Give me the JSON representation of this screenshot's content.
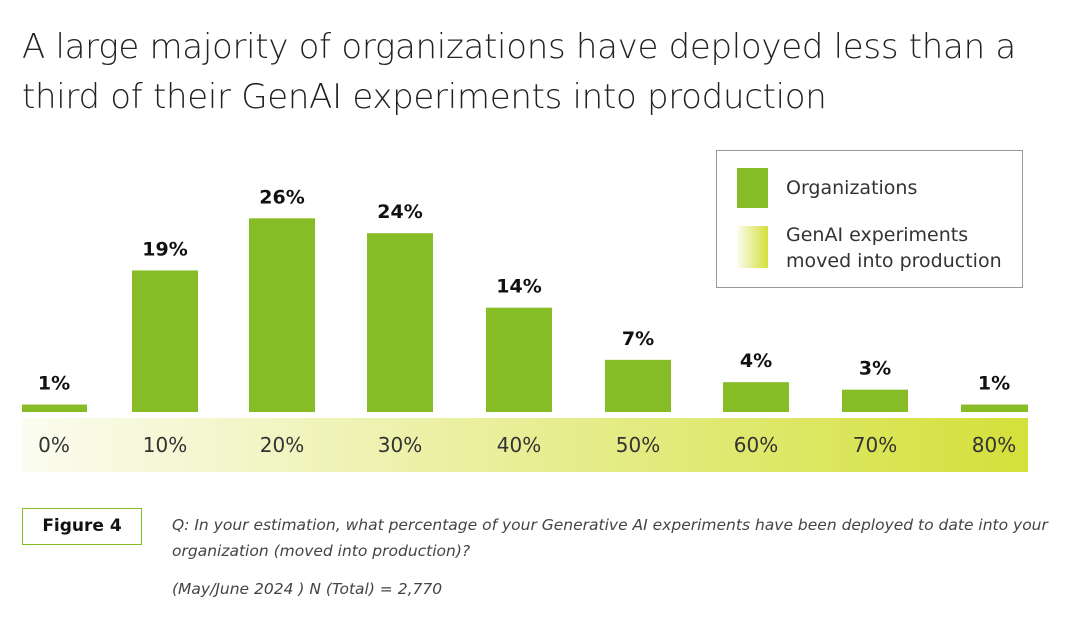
{
  "chart_data": {
    "type": "bar",
    "title": "A large majority of organizations have deployed less than a third of their GenAI experiments into production",
    "categories": [
      "0%",
      "10%",
      "20%",
      "30%",
      "40%",
      "50%",
      "60%",
      "70%",
      "80%"
    ],
    "series": [
      {
        "name": "Organizations",
        "color": "#86bc25",
        "values": [
          1,
          19,
          26,
          24,
          14,
          7,
          4,
          3,
          1
        ],
        "value_labels": [
          "1%",
          "19%",
          "26%",
          "24%",
          "14%",
          "7%",
          "4%",
          "3%",
          "1%"
        ]
      }
    ],
    "x_band": {
      "name": "GenAI experiments moved into production",
      "colors": [
        "#fbfcf0",
        "#d4e03a"
      ]
    },
    "grid": false,
    "legend_position": "upper right"
  },
  "footer": {
    "figure_label": "Figure 4",
    "question": "Q: In your estimation, what percentage of your Generative AI experiments have been deployed to date into your organization (moved into production)?",
    "source": "(May/June 2024 ) N (Total) = 2,770"
  }
}
